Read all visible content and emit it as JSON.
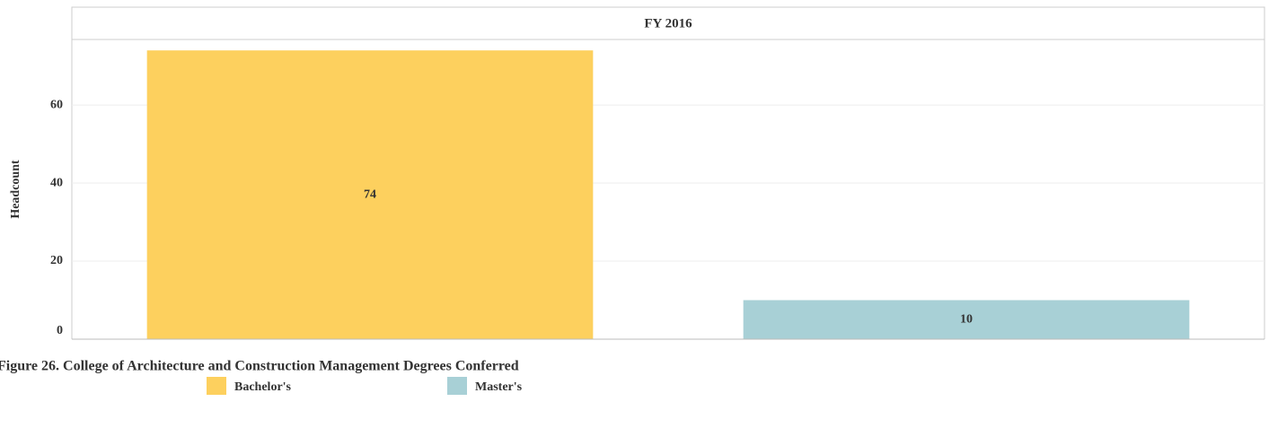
{
  "chart_data": {
    "type": "bar",
    "facet": "FY 2016",
    "title": "Figure 26. College of Architecture and Construction Management Degrees Conferred",
    "y_label": "Headcount",
    "categories": [
      "Bachelor's",
      "Master's"
    ],
    "values": [
      74,
      10
    ],
    "colors": [
      "#fdd05e",
      "#a8d0d6"
    ],
    "ylim": [
      0,
      76.8
    ],
    "yticks": [
      0,
      20,
      40,
      60
    ],
    "grid": true
  }
}
